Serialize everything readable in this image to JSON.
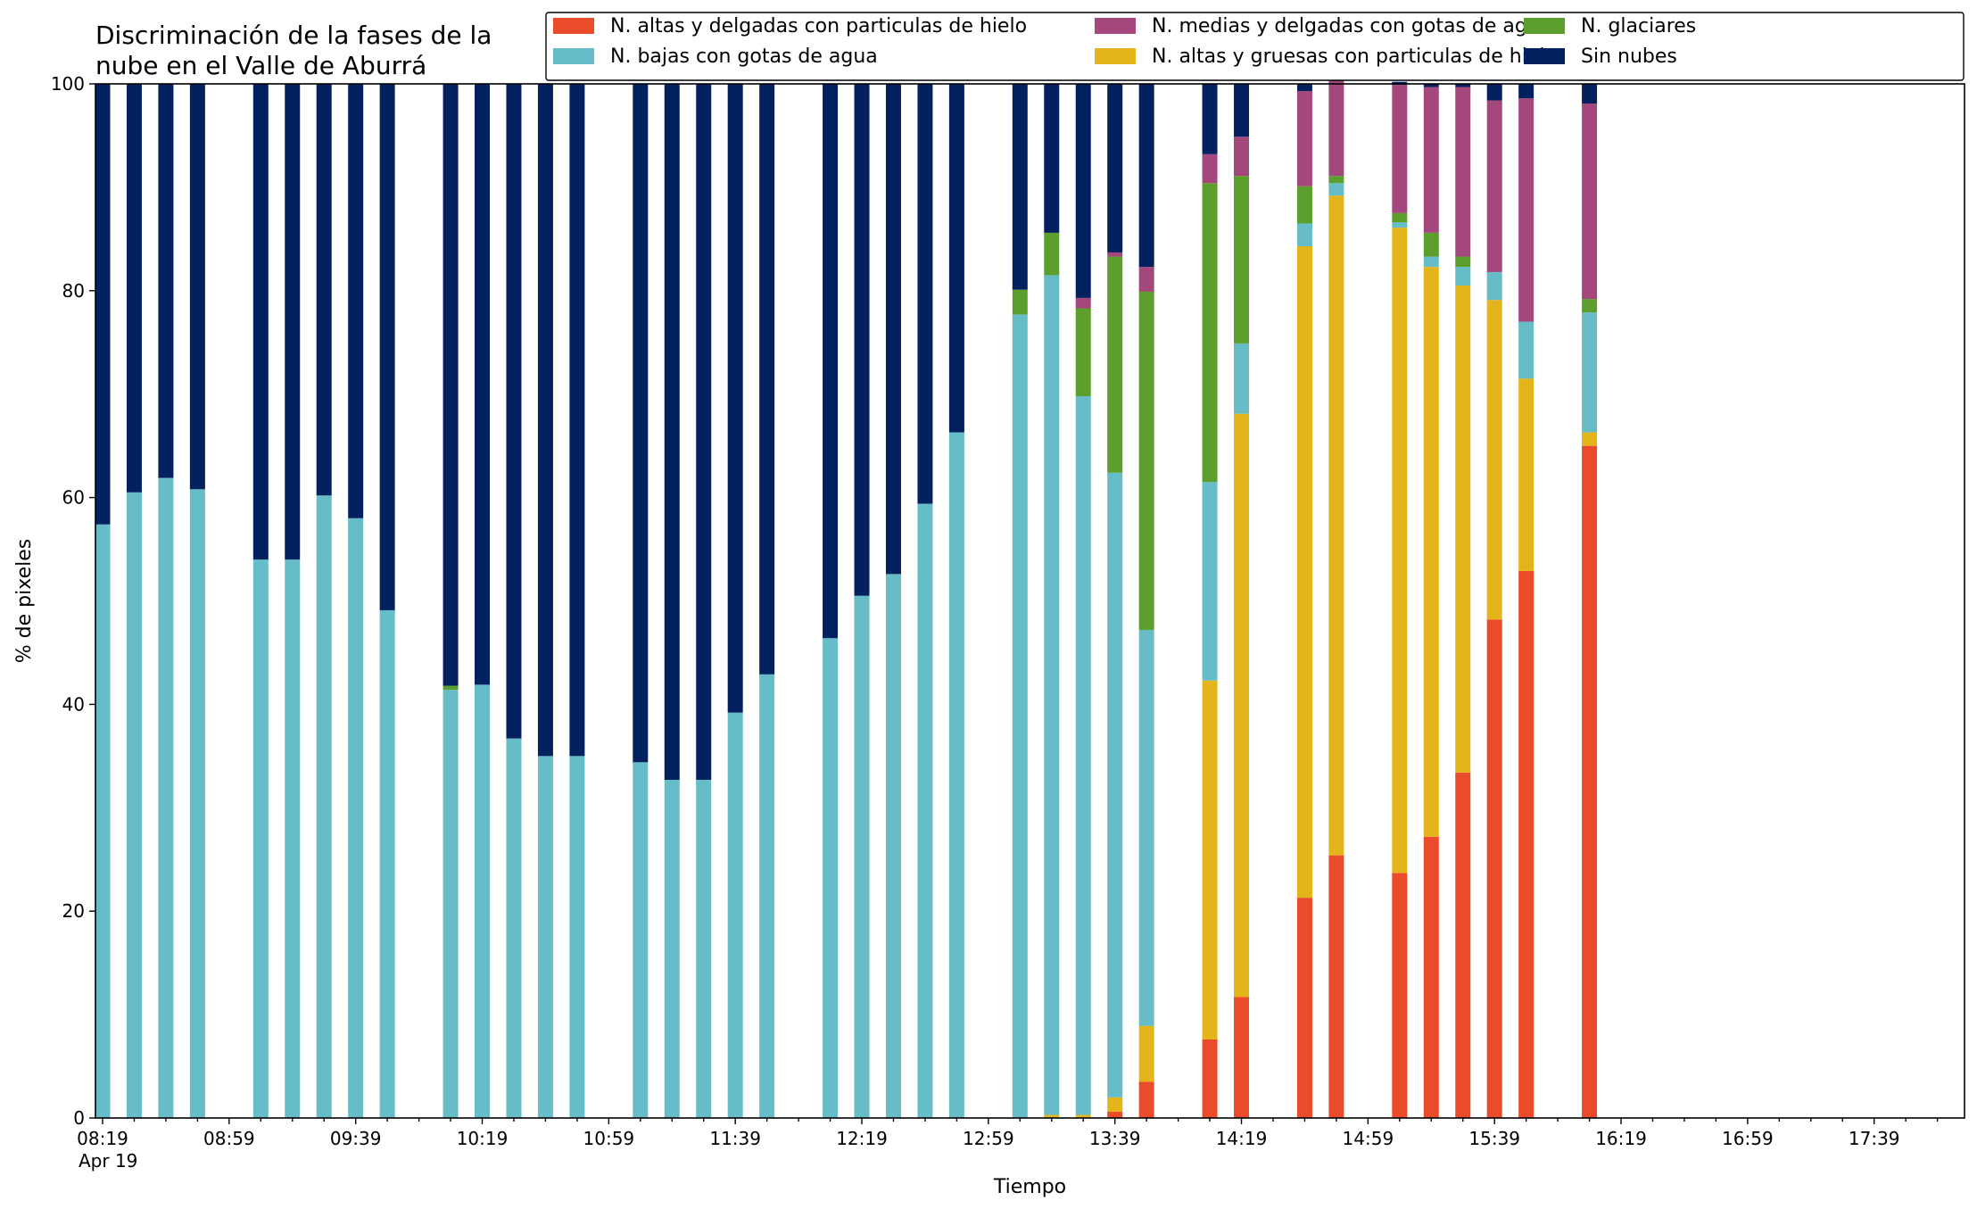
{
  "chart_data": {
    "type": "bar",
    "stacked": true,
    "title": "Discriminación de la fases de la\nnube en el Valle de Aburrá",
    "xlabel": "Tiempo",
    "ylabel": "% de pixeles",
    "ylim": [
      0,
      100
    ],
    "y_ticks": [
      0,
      20,
      40,
      60,
      80,
      100
    ],
    "x_range": [
      "08:19",
      "18:04"
    ],
    "x_tick_labels": [
      "08:19",
      "08:59",
      "09:39",
      "10:19",
      "10:59",
      "11:39",
      "12:19",
      "12:59",
      "13:39",
      "14:19",
      "14:59",
      "15:39",
      "16:19",
      "16:59",
      "17:39"
    ],
    "x_date_label": "Apr 19",
    "grid": false,
    "legend_position": "top-right",
    "legend_order": [
      0,
      2,
      4,
      1,
      3,
      5
    ],
    "categories": [
      "08:19",
      "08:29",
      "08:39",
      "08:49",
      "09:09",
      "09:19",
      "09:29",
      "09:39",
      "09:49",
      "10:09",
      "10:19",
      "10:29",
      "10:39",
      "10:49",
      "11:09",
      "11:19",
      "11:29",
      "11:39",
      "11:49",
      "12:09",
      "12:19",
      "12:29",
      "12:39",
      "12:49",
      "13:09",
      "13:19",
      "13:29",
      "13:39",
      "13:49",
      "14:09",
      "14:19",
      "14:39",
      "14:49",
      "15:09",
      "15:19",
      "15:29",
      "15:39",
      "15:49",
      "16:09"
    ],
    "series": [
      {
        "name": "N. altas y delgadas con particulas de hielo",
        "color": "#ea4b2b",
        "values": [
          0,
          0,
          0,
          0,
          0,
          0,
          0,
          0,
          0,
          0,
          0,
          0,
          0,
          0,
          0,
          0,
          0,
          0,
          0,
          0,
          0,
          0,
          0,
          0,
          0,
          0,
          0,
          0.6,
          3.5,
          7.6,
          11.7,
          21.3,
          25.4,
          23.7,
          27.2,
          33.4,
          48.2,
          52.9,
          65.0
        ]
      },
      {
        "name": "N. altas y gruesas con particulas de hielo",
        "color": "#e3b51b",
        "values": [
          0,
          0,
          0,
          0,
          0,
          0,
          0,
          0,
          0,
          0,
          0,
          0,
          0,
          0,
          0,
          0,
          0,
          0,
          0,
          0,
          0,
          0,
          0,
          0,
          0,
          0.3,
          0.3,
          1.4,
          5.4,
          34.7,
          56.4,
          63.0,
          63.8,
          62.4,
          55.1,
          47.1,
          30.9,
          18.6,
          1.3
        ]
      },
      {
        "name": "N. bajas con gotas de agua",
        "color": "#66bdc8",
        "values": [
          57.4,
          60.5,
          61.9,
          60.8,
          54.0,
          54.0,
          60.2,
          58.0,
          49.1,
          41.4,
          41.9,
          36.7,
          35.0,
          35.0,
          34.4,
          32.7,
          32.7,
          39.2,
          42.9,
          46.4,
          50.5,
          52.6,
          59.4,
          66.3,
          77.7,
          81.2,
          69.5,
          60.4,
          38.3,
          19.2,
          6.8,
          2.2,
          1.2,
          0.5,
          1.0,
          1.8,
          2.7,
          5.5,
          11.6
        ]
      },
      {
        "name": "N. glaciares",
        "color": "#5c9f2c",
        "values": [
          0,
          0,
          0,
          0,
          0,
          0,
          0,
          0,
          0,
          0.4,
          0,
          0,
          0,
          0,
          0,
          0,
          0,
          0,
          0,
          0,
          0,
          0,
          0,
          0,
          2.4,
          4.1,
          8.5,
          20.9,
          32.7,
          28.9,
          16.2,
          3.6,
          0.7,
          0.9,
          2.3,
          1.0,
          0,
          0,
          1.3
        ]
      },
      {
        "name": "N. medias y delgadas con gotas de agua",
        "color": "#a4477c",
        "values": [
          0,
          0,
          0,
          0,
          0,
          0,
          0,
          0,
          0,
          0,
          0,
          0,
          0,
          0,
          0,
          0,
          0,
          0,
          0,
          0,
          0,
          0,
          0,
          0,
          0,
          0,
          1.0,
          0.4,
          2.4,
          2.8,
          3.8,
          9.2,
          9.5,
          12.4,
          14.1,
          16.4,
          16.6,
          21.6,
          18.9
        ]
      },
      {
        "name": "Sin nubes",
        "color": "#04215f",
        "values": [
          42.6,
          39.5,
          38.1,
          39.2,
          46.0,
          46.0,
          39.8,
          42.0,
          50.9,
          58.2,
          58.1,
          63.3,
          65.0,
          65.0,
          65.6,
          67.3,
          67.3,
          60.8,
          57.1,
          53.6,
          49.5,
          47.4,
          40.6,
          33.7,
          19.9,
          14.4,
          20.7,
          16.3,
          17.7,
          6.8,
          5.1,
          0.7,
          0.2,
          0.3,
          0.3,
          0.3,
          1.6,
          1.4,
          1.9
        ]
      }
    ]
  }
}
